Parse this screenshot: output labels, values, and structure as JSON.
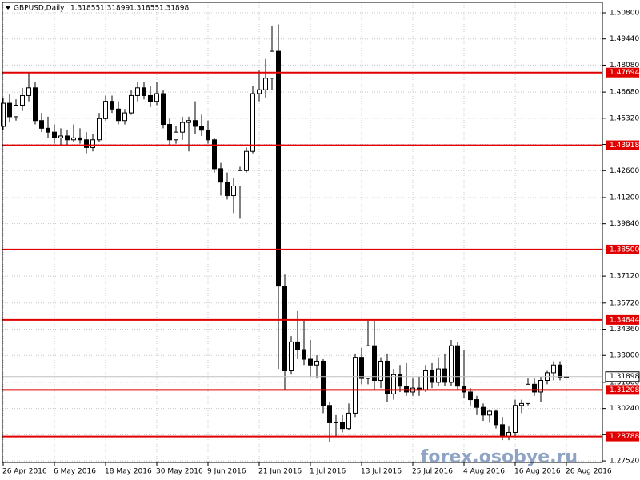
{
  "chart_data": {
    "type": "candlestick",
    "title": "GBPUSD,Daily",
    "watermark": "forex.osobye.ru",
    "categories": [
      "26 Apr 2016",
      null,
      null,
      null,
      null,
      null,
      null,
      null,
      "6 May 2016",
      null,
      null,
      null,
      null,
      null,
      null,
      null,
      "18 May 2016",
      null,
      null,
      null,
      null,
      null,
      null,
      null,
      "30 May 2016",
      null,
      null,
      null,
      null,
      null,
      null,
      null,
      "9 Jun 2016",
      null,
      null,
      null,
      null,
      null,
      null,
      null,
      "21 Jun 2016",
      null,
      null,
      null,
      null,
      null,
      null,
      null,
      "1 Jul 2016",
      null,
      null,
      null,
      null,
      null,
      null,
      null,
      "13 Jul 2016",
      null,
      null,
      null,
      null,
      null,
      null,
      null,
      "25 Jul 2016",
      null,
      null,
      null,
      null,
      null,
      null,
      null,
      "4 Aug 2016",
      null,
      null,
      null,
      null,
      null,
      null,
      null,
      "16 Aug 2016",
      null,
      null,
      null,
      null,
      null,
      null,
      null,
      "26 Aug 2016"
    ],
    "open": [
      1.449,
      1.461,
      1.454,
      1.46,
      1.465,
      1.469,
      1.452,
      1.448,
      1.446,
      1.443,
      1.444,
      1.442,
      1.443,
      1.442,
      1.438,
      1.442,
      1.453,
      1.462,
      1.458,
      1.452,
      1.456,
      1.465,
      1.469,
      1.465,
      1.462,
      1.466,
      1.45,
      1.442,
      1.446,
      1.451,
      1.452,
      1.449,
      1.447,
      1.442,
      1.427,
      1.42,
      1.413,
      1.418,
      1.426,
      1.436,
      1.466,
      1.468,
      1.474,
      1.488,
      1.366,
      1.322,
      1.337,
      1.333,
      1.328,
      1.325,
      1.327,
      1.304,
      1.295,
      1.295,
      1.292,
      1.3,
      1.329,
      1.318,
      1.335,
      1.317,
      1.327,
      1.31,
      1.32,
      1.314,
      1.311,
      1.313,
      1.312,
      1.322,
      1.316,
      1.323,
      1.316,
      1.335,
      1.314,
      1.311,
      1.307,
      1.303,
      1.299,
      1.301,
      1.294,
      1.288,
      1.29,
      1.304,
      1.305,
      1.315,
      1.311,
      1.317,
      1.321,
      1.325,
      1.31855
    ],
    "high": [
      1.464,
      1.466,
      1.463,
      1.469,
      1.477,
      1.472,
      1.456,
      1.454,
      1.45,
      1.448,
      1.447,
      1.45,
      1.448,
      1.446,
      1.445,
      1.456,
      1.465,
      1.465,
      1.462,
      1.458,
      1.468,
      1.472,
      1.472,
      1.47,
      1.472,
      1.468,
      1.453,
      1.449,
      1.454,
      1.454,
      1.462,
      1.455,
      1.452,
      1.443,
      1.43,
      1.425,
      1.422,
      1.428,
      1.438,
      1.47,
      1.478,
      1.484,
      1.501,
      1.502,
      1.372,
      1.34,
      1.353,
      1.348,
      1.338,
      1.33,
      1.328,
      1.306,
      1.299,
      1.299,
      1.305,
      1.331,
      1.334,
      1.348,
      1.348,
      1.329,
      1.331,
      1.323,
      1.325,
      1.326,
      1.318,
      1.319,
      1.325,
      1.326,
      1.329,
      1.331,
      1.338,
      1.337,
      1.333,
      1.313,
      1.309,
      1.305,
      1.302,
      1.302,
      1.298,
      1.293,
      1.307,
      1.307,
      1.318,
      1.318,
      1.319,
      1.322,
      1.327,
      1.327,
      1.31899
    ],
    "low": [
      1.447,
      1.451,
      1.452,
      1.457,
      1.462,
      1.45,
      1.446,
      1.443,
      1.44,
      1.439,
      1.439,
      1.441,
      1.44,
      1.435,
      1.436,
      1.441,
      1.452,
      1.456,
      1.45,
      1.45,
      1.455,
      1.462,
      1.463,
      1.459,
      1.46,
      1.448,
      1.439,
      1.44,
      1.442,
      1.436,
      1.445,
      1.444,
      1.44,
      1.425,
      1.413,
      1.411,
      1.404,
      1.401,
      1.425,
      1.435,
      1.462,
      1.464,
      1.468,
      1.323,
      1.312,
      1.32,
      1.328,
      1.325,
      1.319,
      1.318,
      1.3,
      1.285,
      1.288,
      1.29,
      1.291,
      1.298,
      1.315,
      1.315,
      1.312,
      1.313,
      1.306,
      1.307,
      1.311,
      1.309,
      1.309,
      1.309,
      1.311,
      1.313,
      1.314,
      1.314,
      1.314,
      1.312,
      1.308,
      1.304,
      1.299,
      1.296,
      1.295,
      1.292,
      1.286,
      1.286,
      1.288,
      1.3,
      1.304,
      1.309,
      1.306,
      1.315,
      1.317,
      1.317,
      1.31855
    ],
    "close": [
      1.461,
      1.454,
      1.46,
      1.465,
      1.469,
      1.452,
      1.448,
      1.446,
      1.443,
      1.444,
      1.442,
      1.443,
      1.442,
      1.438,
      1.442,
      1.453,
      1.462,
      1.458,
      1.452,
      1.456,
      1.465,
      1.469,
      1.465,
      1.462,
      1.466,
      1.45,
      1.442,
      1.446,
      1.451,
      1.452,
      1.449,
      1.447,
      1.442,
      1.427,
      1.42,
      1.413,
      1.418,
      1.426,
      1.436,
      1.466,
      1.468,
      1.474,
      1.488,
      1.366,
      1.322,
      1.337,
      1.333,
      1.328,
      1.325,
      1.327,
      1.304,
      1.295,
      1.295,
      1.292,
      1.3,
      1.329,
      1.318,
      1.335,
      1.317,
      1.327,
      1.31,
      1.32,
      1.314,
      1.311,
      1.313,
      1.312,
      1.322,
      1.316,
      1.323,
      1.316,
      1.335,
      1.314,
      1.311,
      1.307,
      1.303,
      1.299,
      1.301,
      1.294,
      1.288,
      1.29,
      1.304,
      1.305,
      1.315,
      1.311,
      1.317,
      1.321,
      1.325,
      1.31855,
      1.31898
    ],
    "ylim": [
      1.2744,
      1.5134
    ],
    "yticks": [
      {
        "value": 1.508,
        "label": "1.50800"
      },
      {
        "value": 1.4944,
        "label": "1.49440"
      },
      {
        "value": 1.4808,
        "label": "1.48080"
      },
      {
        "value": 1.4668,
        "label": "1.46680"
      },
      {
        "value": 1.4532,
        "label": "1.45320"
      },
      {
        "value": 1.4396,
        "label": "1.43960"
      },
      {
        "value": 1.426,
        "label": "1.42600"
      },
      {
        "value": 1.412,
        "label": "1.41200"
      },
      {
        "value": 1.3984,
        "label": "1.39840"
      },
      {
        "value": 1.3848,
        "label": "1.38480"
      },
      {
        "value": 1.3712,
        "label": "1.37120"
      },
      {
        "value": 1.3572,
        "label": "1.35720"
      },
      {
        "value": 1.3436,
        "label": "1.34360"
      },
      {
        "value": 1.33,
        "label": "1.33000"
      },
      {
        "value": 1.316,
        "label": "1.31600"
      },
      {
        "value": 1.3024,
        "label": "1.30240"
      },
      {
        "value": 1.2888,
        "label": "1.28880"
      },
      {
        "value": 1.2752,
        "label": "1.27520"
      }
    ],
    "levels": [
      1.47694,
      1.43918,
      {
        "value": 1.385,
        "label": "1.38500"
      },
      1.34844,
      1.31208,
      1.28788
    ],
    "level_color": "#e00000",
    "up_color": "#ffffff",
    "down_color": "#000000",
    "grid": true
  }
}
